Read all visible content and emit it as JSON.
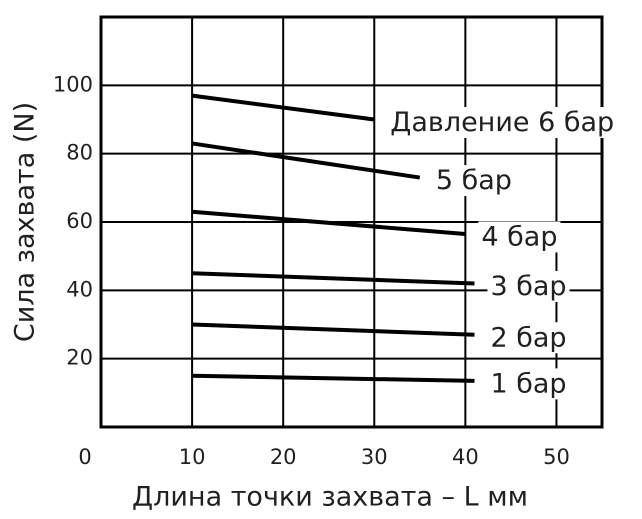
{
  "chart_data": {
    "type": "line",
    "xlabel": "Длина точки захвата – L мм",
    "ylabel": "Сила захвата (N)",
    "xlim": [
      0,
      55
    ],
    "ylim": [
      0,
      120
    ],
    "xticks": [
      0,
      10,
      20,
      30,
      40,
      50
    ],
    "yticks": [
      20,
      40,
      60,
      80,
      100
    ],
    "grid": true,
    "series": [
      {
        "name": "Давление 6 бар",
        "color": "#000000",
        "x": [
          10,
          30
        ],
        "values": [
          97,
          90
        ]
      },
      {
        "name": "5 бар",
        "color": "#000000",
        "x": [
          10,
          35
        ],
        "values": [
          83,
          73
        ]
      },
      {
        "name": "4 бар",
        "color": "#000000",
        "x": [
          10,
          40
        ],
        "values": [
          63,
          56.5
        ]
      },
      {
        "name": "3 бар",
        "color": "#000000",
        "x": [
          10,
          41
        ],
        "values": [
          45,
          42
        ]
      },
      {
        "name": "2 бар",
        "color": "#000000",
        "x": [
          10,
          41
        ],
        "values": [
          30,
          27
        ]
      },
      {
        "name": "1 бар",
        "color": "#000000",
        "x": [
          10,
          41
        ],
        "values": [
          15,
          13.5
        ]
      }
    ]
  }
}
